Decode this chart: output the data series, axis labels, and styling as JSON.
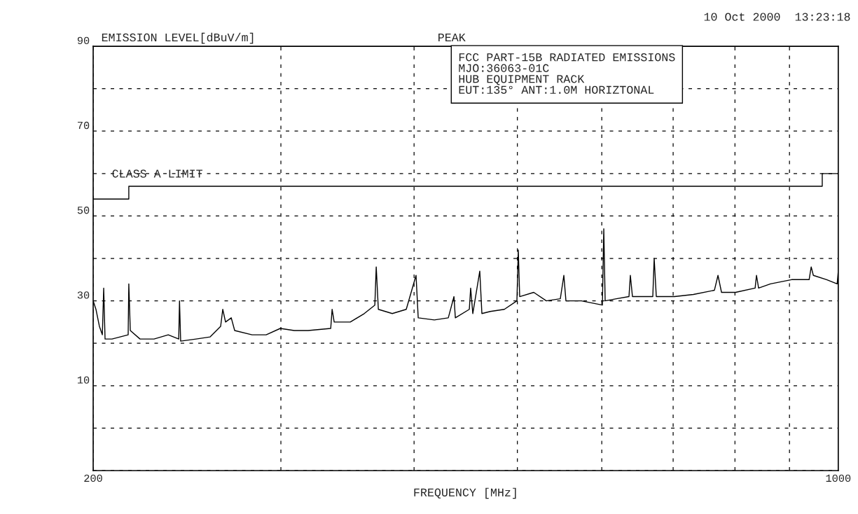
{
  "chart_data": {
    "type": "line",
    "ylabel": "EMISSION LEVEL[dBuV/m]",
    "xlabel": "FREQUENCY [MHz]",
    "log": "x",
    "xlim": [
      200,
      1000
    ],
    "xticks": [
      200,
      {
        "value": 300,
        "label": null
      },
      {
        "value": 400,
        "label": null
      },
      {
        "value": 500,
        "label": null
      },
      {
        "value": 600,
        "label": null
      },
      {
        "value": 700,
        "label": null
      },
      {
        "value": 800,
        "label": null
      },
      {
        "value": 900,
        "label": null
      },
      1000
    ],
    "ylim": [
      -10,
      90
    ],
    "yticks": [
      {
        "value": -10,
        "label": null
      },
      {
        "value": 0,
        "label": null
      },
      10,
      {
        "value": 20,
        "label": null
      },
      30,
      {
        "value": 40,
        "label": null
      },
      50,
      {
        "value": 60,
        "label": null
      },
      70,
      {
        "value": 80,
        "label": null
      },
      90
    ],
    "grid": true,
    "line_style": "solid",
    "marker": "none",
    "series": [
      {
        "color": "#000000",
        "x": [
          200,
          201.2,
          202.7,
          204.0,
          204.6,
          205.2,
          208.3,
          215.7,
          216.0,
          216.7,
          221.3,
          228.1,
          235.2,
          240.6,
          241.0,
          241.6,
          249.8,
          257.5,
          263.4,
          264.6,
          266.2,
          269.5,
          271.5,
          281.9,
          290.6,
          299.6,
          308.8,
          318.2,
          334.1,
          335.1,
          336.6,
          348.5,
          356.5,
          359.2,
          367.5,
          368.6,
          370.3,
          381.6,
          393.3,
          401.7,
          403.6,
          417.9,
          430.7,
          436.0,
          437.3,
          450.7,
          452.0,
          454.1,
          461.0,
          463.1,
          471.6,
          486.1,
          499.5,
          501.0,
          502.5,
          518.0,
          532.3,
          548.6,
          552.8,
          555.3,
          574.1,
          600.8,
          602.6,
          604.4,
          619.2,
          636.3,
          638.2,
          641.1,
          669.9,
          671.9,
          675.0,
          702.1,
          731.3,
          765.3,
          771.2,
          777.1,
          801.0,
          835.6,
          838.1,
          841.9,
          863.8,
          904.0,
          939.0,
          943.2,
          947.6,
          975.2,
          997.6,
          1000
        ],
        "values": [
          30,
          28,
          24,
          22,
          33,
          21,
          21,
          22,
          34,
          23,
          21,
          21,
          22,
          21,
          30,
          20.5,
          21,
          21.5,
          24,
          28,
          25,
          26,
          23,
          22,
          22,
          23.5,
          23,
          23,
          23.5,
          28,
          25,
          25,
          26.5,
          27,
          29,
          38,
          28,
          27,
          28,
          36,
          26,
          25.5,
          26,
          31,
          26,
          28,
          33,
          27,
          37,
          27,
          27.5,
          28,
          30,
          42,
          31,
          32,
          30,
          30.5,
          36,
          30,
          30,
          29,
          47,
          30,
          30.5,
          31,
          36,
          31,
          31,
          40,
          31,
          31,
          31.5,
          32.5,
          36,
          32,
          32,
          33,
          36,
          33,
          34,
          35,
          35,
          38,
          36,
          35,
          34,
          37
        ]
      },
      {
        "color": "#000000",
        "x": [
          200,
          216,
          216,
          966,
          966,
          1000
        ],
        "values": [
          54,
          54,
          57,
          57,
          60,
          60
        ]
      }
    ],
    "annotations": [
      "CLASS A LIMIT",
      "10 Oct 2000  13:23:18",
      "PEAK",
      "FCC PART-15B RADIATED EMISSIONS\nMJO:36063-01C\nHUB EQUIPMENT RACK\nEUT:135° ANT:1.0M HORIZTONAL"
    ]
  }
}
